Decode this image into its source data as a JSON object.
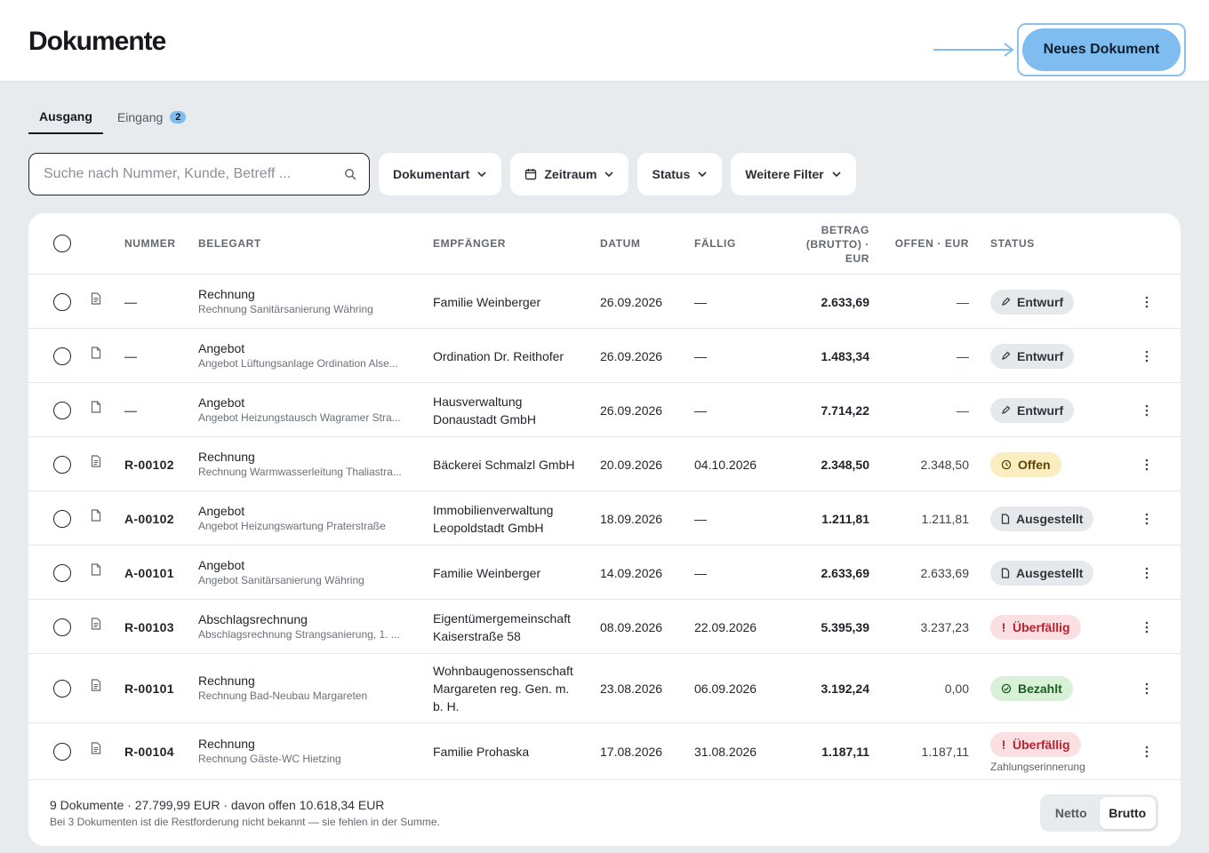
{
  "header": {
    "title": "Dokumente",
    "new_doc_label": "Neues Dokument",
    "accent": "#7fbcf0"
  },
  "tabs": [
    {
      "label": "Ausgang",
      "active": true
    },
    {
      "label": "Eingang",
      "badge": "2",
      "active": false
    }
  ],
  "filters": {
    "search_placeholder": "Suche nach Nummer, Kunde, Betreff ...",
    "doc_type": "Dokumentart",
    "period": "Zeitraum",
    "status": "Status",
    "more": "Weitere Filter"
  },
  "table": {
    "headers": {
      "number": "NUMMER",
      "beleg": "BELEGART",
      "recipient": "EMPFÄNGER",
      "date": "DATUM",
      "due": "FÄLLIG",
      "amount_l1": "BETRAG",
      "amount_l2": "(BRUTTO) ·",
      "amount_l3": "EUR",
      "open": "OFFEN · EUR",
      "status": "STATUS"
    },
    "rows": [
      {
        "number": "—",
        "type": "Rechnung",
        "subject": "Rechnung Sanitärsanierung Währing",
        "recipient_1": "Familie Weinberger",
        "recipient_2": "",
        "recipient_3": "",
        "date": "26.09.2026",
        "due": "—",
        "amount": "2.633,69",
        "open": "—",
        "status": "Entwurf",
        "status_kind": "draft",
        "icon": "invoice-icon",
        "note": ""
      },
      {
        "number": "—",
        "type": "Angebot",
        "subject": "Angebot Lüftungsanlage Ordination Alse...",
        "recipient_1": "Ordination Dr. Reithofer",
        "recipient_2": "",
        "recipient_3": "",
        "date": "26.09.2026",
        "due": "—",
        "amount": "1.483,34",
        "open": "—",
        "status": "Entwurf",
        "status_kind": "draft",
        "icon": "offer-icon",
        "note": ""
      },
      {
        "number": "—",
        "type": "Angebot",
        "subject": "Angebot Heizungstausch Wagramer Stra...",
        "recipient_1": "Hausverwaltung",
        "recipient_2": "Donaustadt GmbH",
        "recipient_3": "",
        "date": "26.09.2026",
        "due": "—",
        "amount": "7.714,22",
        "open": "—",
        "status": "Entwurf",
        "status_kind": "draft",
        "icon": "offer-icon",
        "note": ""
      },
      {
        "number": "R-00102",
        "type": "Rechnung",
        "subject": "Rechnung Warmwasserleitung Thaliastra...",
        "recipient_1": "Bäckerei Schmalzl GmbH",
        "recipient_2": "",
        "recipient_3": "",
        "date": "20.09.2026",
        "due": "04.10.2026",
        "amount": "2.348,50",
        "open": "2.348,50",
        "status": "Offen",
        "status_kind": "open",
        "icon": "invoice-icon",
        "note": ""
      },
      {
        "number": "A-00102",
        "type": "Angebot",
        "subject": "Angebot Heizungswartung Praterstraße",
        "recipient_1": "Immobilienverwaltung",
        "recipient_2": "Leopoldstadt GmbH",
        "recipient_3": "",
        "date": "18.09.2026",
        "due": "—",
        "amount": "1.211,81",
        "open": "1.211,81",
        "status": "Ausgestellt",
        "status_kind": "issued",
        "icon": "offer-icon",
        "note": ""
      },
      {
        "number": "A-00101",
        "type": "Angebot",
        "subject": "Angebot Sanitärsanierung Währing",
        "recipient_1": "Familie Weinberger",
        "recipient_2": "",
        "recipient_3": "",
        "date": "14.09.2026",
        "due": "—",
        "amount": "2.633,69",
        "open": "2.633,69",
        "status": "Ausgestellt",
        "status_kind": "issued",
        "icon": "offer-icon",
        "note": ""
      },
      {
        "number": "R-00103",
        "type": "Abschlagsrechnung",
        "subject": "Abschlagsrechnung Strangsanierung, 1. ...",
        "recipient_1": "Eigentümergemeinschaft",
        "recipient_2": "Kaiserstraße 58",
        "recipient_3": "",
        "date": "08.09.2026",
        "due": "22.09.2026",
        "amount": "5.395,39",
        "open": "3.237,23",
        "status": "Überfällig",
        "status_kind": "overdue",
        "icon": "invoice-icon",
        "note": ""
      },
      {
        "number": "R-00101",
        "type": "Rechnung",
        "subject": "Rechnung Bad-Neubau Margareten",
        "recipient_1": "Wohnbaugenossenschaft",
        "recipient_2": "Margareten reg. Gen. m.",
        "recipient_3": "b. H.",
        "date": "23.08.2026",
        "due": "06.09.2026",
        "amount": "3.192,24",
        "open": "0,00",
        "status": "Bezahlt",
        "status_kind": "paid",
        "icon": "invoice-icon",
        "note": ""
      },
      {
        "number": "R-00104",
        "type": "Rechnung",
        "subject": "Rechnung Gäste-WC Hietzing",
        "recipient_1": "Familie Prohaska",
        "recipient_2": "",
        "recipient_3": "",
        "date": "17.08.2026",
        "due": "31.08.2026",
        "amount": "1.187,11",
        "open": "1.187,11",
        "status": "Überfällig",
        "status_kind": "overdue",
        "icon": "invoice-icon",
        "note": "Zahlungserinnerung"
      }
    ]
  },
  "footer": {
    "summary": "9 Dokumente · 27.799,99 EUR · davon offen 10.618,34 EUR",
    "note": "Bei 3 Dokumenten ist die Restforderung nicht bekannt — sie fehlen in der Summe.",
    "toggle": {
      "netto": "Netto",
      "brutto": "Brutto",
      "active": "Brutto"
    }
  }
}
